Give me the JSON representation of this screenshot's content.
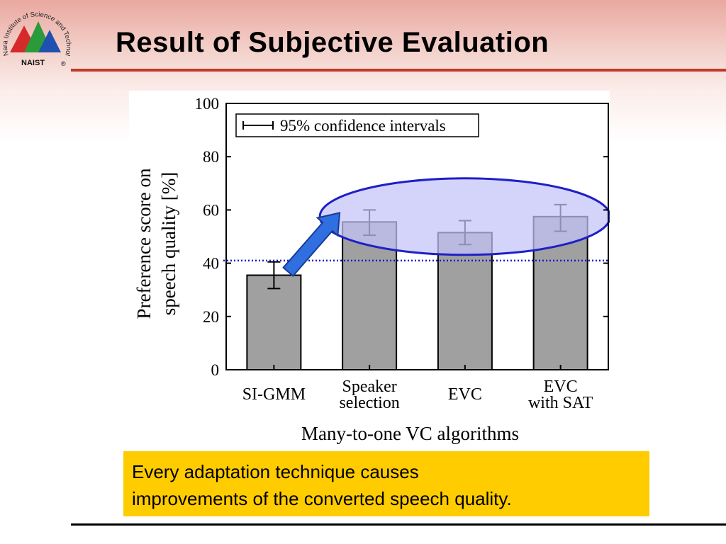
{
  "slide": {
    "title": "Result of Subjective Evaluation",
    "logo_text": "Nara Institute of Science and Technology",
    "logo_badge": "NAIST",
    "logo_mark": "®",
    "callout_lines": [
      "Every adaptation technique causes",
      "improvements of the converted speech quality."
    ]
  },
  "chart_data": {
    "type": "bar",
    "categories": [
      [
        "SI-GMM"
      ],
      [
        "Speaker",
        "selection"
      ],
      [
        "EVC"
      ],
      [
        "EVC",
        "with SAT"
      ]
    ],
    "values": [
      35.5,
      55.5,
      51.5,
      57.5
    ],
    "ci_low": [
      30.5,
      50.5,
      47.0,
      52.0
    ],
    "ci_high": [
      40.5,
      60.0,
      56.0,
      62.0
    ],
    "xlabel": "Many-to-one VC algorithms",
    "ylabel_lines": [
      "Preference score on",
      "speech quality [%]"
    ],
    "ylim": [
      0,
      100
    ],
    "yticks": [
      0,
      20,
      40,
      60,
      80,
      100
    ],
    "legend": "95% confidence intervals",
    "legend_position": "top-left",
    "reference_line": 41,
    "colors": {
      "bar": "#a0a0a0",
      "highlight_fill": "#c4c4fa",
      "highlight_stroke": "#1f1fc8",
      "arrow": "#2f6fe0",
      "reference_line": "#1a1acc"
    }
  }
}
